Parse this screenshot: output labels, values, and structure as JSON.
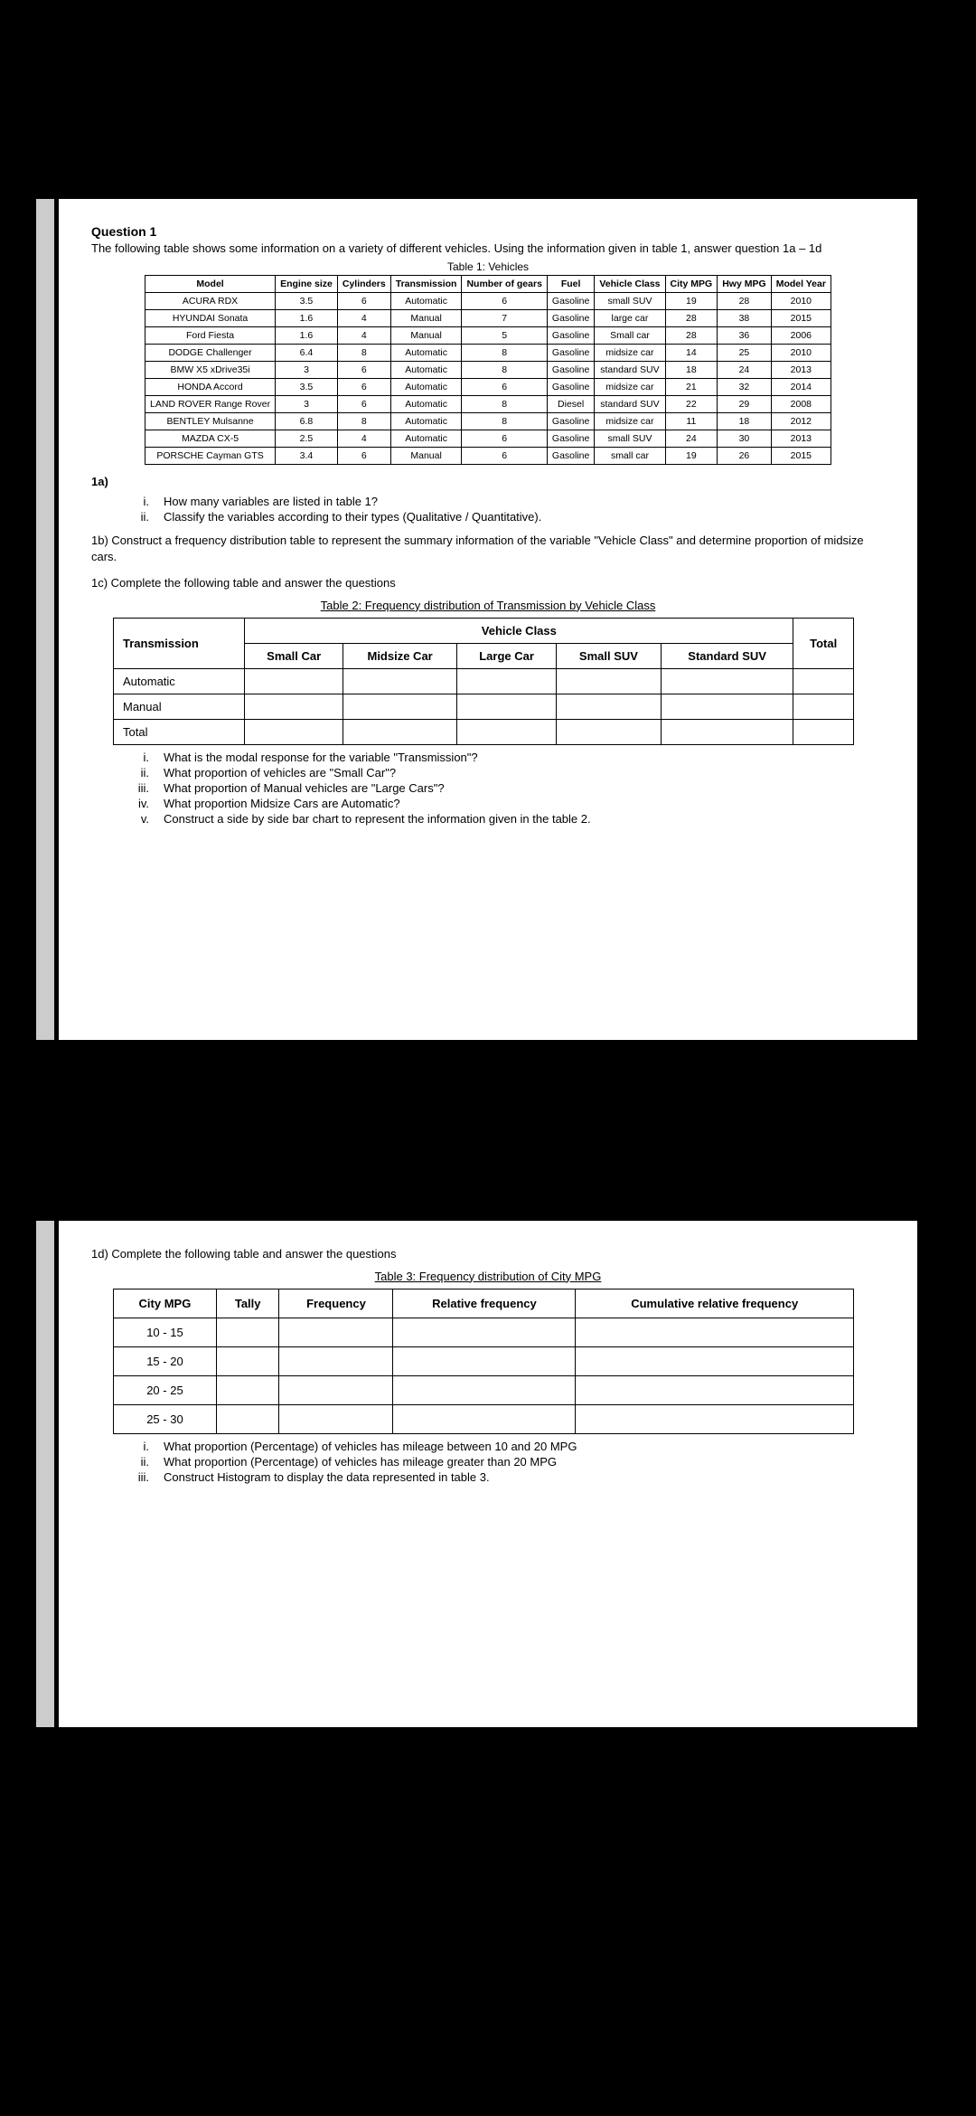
{
  "q1": {
    "title": "Question 1",
    "intro": "The following table shows some information on a variety of different vehicles. Using the information given in table 1, answer question 1a – 1d",
    "table1_caption": "Table 1:  Vehicles",
    "headers": [
      "Model",
      "Engine size",
      "Cylinders",
      "Transmission",
      "Number of gears",
      "Fuel",
      "Vehicle Class",
      "City MPG",
      "Hwy MPG",
      "Model Year"
    ],
    "rows": [
      [
        "ACURA RDX",
        "3.5",
        "6",
        "Automatic",
        "6",
        "Gasoline",
        "small SUV",
        "19",
        "28",
        "2010"
      ],
      [
        "HYUNDAI Sonata",
        "1.6",
        "4",
        "Manual",
        "7",
        "Gasoline",
        "large car",
        "28",
        "38",
        "2015"
      ],
      [
        "Ford Fiesta",
        "1.6",
        "4",
        "Manual",
        "5",
        "Gasoline",
        "Small car",
        "28",
        "36",
        "2006"
      ],
      [
        "DODGE Challenger",
        "6.4",
        "8",
        "Automatic",
        "8",
        "Gasoline",
        "midsize car",
        "14",
        "25",
        "2010"
      ],
      [
        "BMW X5 xDrive35i",
        "3",
        "6",
        "Automatic",
        "8",
        "Gasoline",
        "standard SUV",
        "18",
        "24",
        "2013"
      ],
      [
        "HONDA Accord",
        "3.5",
        "6",
        "Automatic",
        "6",
        "Gasoline",
        "midsize car",
        "21",
        "32",
        "2014"
      ],
      [
        "LAND ROVER Range Rover",
        "3",
        "6",
        "Automatic",
        "8",
        "Diesel",
        "standard SUV",
        "22",
        "29",
        "2008"
      ],
      [
        "BENTLEY Mulsanne",
        "6.8",
        "8",
        "Automatic",
        "8",
        "Gasoline",
        "midsize car",
        "11",
        "18",
        "2012"
      ],
      [
        "MAZDA CX-5",
        "2.5",
        "4",
        "Automatic",
        "6",
        "Gasoline",
        "small SUV",
        "24",
        "30",
        "2013"
      ],
      [
        "PORSCHE Cayman GTS",
        "3.4",
        "6",
        "Manual",
        "6",
        "Gasoline",
        "small car",
        "19",
        "26",
        "2015"
      ]
    ],
    "a_label": "1a)",
    "a_i": "How many variables are listed in table 1?",
    "a_ii": "Classify the variables according to their types (Qualitative / Quantitative).",
    "b": "1b) Construct a frequency distribution table to represent the summary information of the variable \"Vehicle Class\" and determine proportion of midsize cars.",
    "c_intro": "1c) Complete the following table and answer the questions",
    "t2_caption": "Table 2: Frequency distribution of Transmission by Vehicle Class",
    "cross": {
      "corner": "Transmission",
      "group_header": "Vehicle Class",
      "cols": [
        "Small Car",
        "Midsize Car",
        "Large Car",
        "Small SUV",
        "Standard SUV"
      ],
      "total": "Total",
      "rows": [
        "Automatic",
        "Manual",
        "Total"
      ]
    },
    "c_items": [
      "What is the modal response for the variable \"Transmission\"?",
      "What proportion of vehicles are \"Small Car\"?",
      "What proportion of Manual vehicles are \"Large Cars\"?",
      "What proportion Midsize Cars are Automatic?",
      "Construct a side by side bar chart to represent the information given in the table 2."
    ],
    "c_markers": [
      "i.",
      "ii.",
      "iii.",
      "iv.",
      "v."
    ]
  },
  "q1d": {
    "intro": "1d) Complete the following table and answer the questions",
    "t3_caption": "Table 3: Frequency distribution of City MPG",
    "headers": [
      "City MPG",
      "Tally",
      "Frequency",
      "Relative frequency",
      "Cumulative relative frequency"
    ],
    "rows": [
      "10 - 15",
      "15 - 20",
      "20 - 25",
      "25 - 30"
    ],
    "items": [
      "What proportion (Percentage) of vehicles has mileage between 10 and 20 MPG",
      "What proportion (Percentage) of vehicles has mileage greater than 20 MPG",
      "Construct Histogram to display the data represented in table 3."
    ],
    "markers": [
      "i.",
      "ii.",
      "iii."
    ]
  }
}
